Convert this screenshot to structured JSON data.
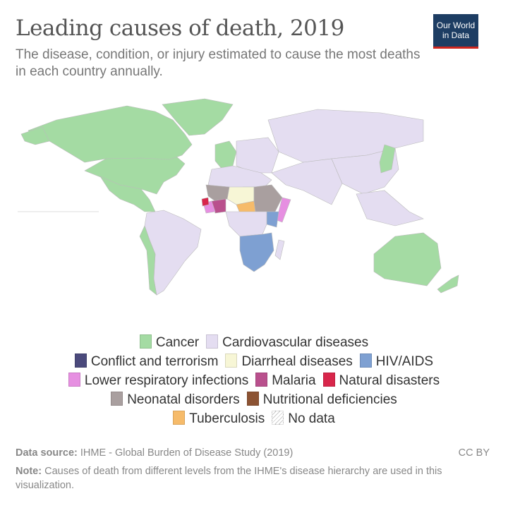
{
  "header": {
    "title": "Leading causes of death, 2019",
    "subtitle": "The disease, condition, or injury estimated to cause the most deaths in each country annually.",
    "logo_line1": "Our World",
    "logo_line2": "in Data"
  },
  "chart_data": {
    "type": "map",
    "title": "Leading causes of death, 2019",
    "legend": [
      {
        "label": "Cancer",
        "color": "#a4dba3"
      },
      {
        "label": "Cardiovascular diseases",
        "color": "#e4ddf1"
      },
      {
        "label": "Conflict and terrorism",
        "color": "#4b4a7c"
      },
      {
        "label": "Diarrheal diseases",
        "color": "#f7f6d6"
      },
      {
        "label": "HIV/AIDS",
        "color": "#7ea0d2"
      },
      {
        "label": "Lower respiratory infections",
        "color": "#e68fe1"
      },
      {
        "label": "Malaria",
        "color": "#b9508d"
      },
      {
        "label": "Natural disasters",
        "color": "#d8264b"
      },
      {
        "label": "Neonatal disorders",
        "color": "#a99f9f"
      },
      {
        "label": "Nutritional deficiencies",
        "color": "#8c5333"
      },
      {
        "label": "Tuberculosis",
        "color": "#f6bb6a"
      },
      {
        "label": "No data",
        "color": "hatch"
      }
    ],
    "regions": [
      {
        "region": "Canada",
        "cause": "Cancer"
      },
      {
        "region": "Greenland",
        "cause": "Cancer"
      },
      {
        "region": "United States",
        "cause": "Cardiovascular diseases"
      },
      {
        "region": "Central America",
        "cause": "Cardiovascular diseases"
      },
      {
        "region": "South America",
        "cause": "Cardiovascular diseases"
      },
      {
        "region": "Peru / Chile",
        "cause": "Cancer"
      },
      {
        "region": "Western Europe",
        "cause": "Cancer"
      },
      {
        "region": "Eastern Europe",
        "cause": "Cardiovascular diseases"
      },
      {
        "region": "Russia & Central Asia",
        "cause": "Cardiovascular diseases"
      },
      {
        "region": "Middle East & South Asia",
        "cause": "Cardiovascular diseases"
      },
      {
        "region": "China & East Asia",
        "cause": "Cardiovascular diseases"
      },
      {
        "region": "Japan / Korea",
        "cause": "Cancer"
      },
      {
        "region": "North Africa",
        "cause": "Cardiovascular diseases"
      },
      {
        "region": "Sahel (Niger/Chad)",
        "cause": "Diarrheal diseases"
      },
      {
        "region": "West Africa",
        "cause": "Neonatal disorders"
      },
      {
        "region": "Coastal West Africa",
        "cause": "Malaria"
      },
      {
        "region": "Sierra Leone / Liberia",
        "cause": "Lower respiratory infections"
      },
      {
        "region": "Guinea",
        "cause": "Natural disasters"
      },
      {
        "region": "Central African Republic",
        "cause": "Tuberculosis"
      },
      {
        "region": "Ethiopia / Sudan",
        "cause": "Neonatal disorders"
      },
      {
        "region": "Somalia",
        "cause": "Lower respiratory infections"
      },
      {
        "region": "Kenya",
        "cause": "HIV/AIDS"
      },
      {
        "region": "Central Africa",
        "cause": "Cardiovascular diseases"
      },
      {
        "region": "Southern Africa",
        "cause": "HIV/AIDS"
      },
      {
        "region": "Madagascar",
        "cause": "Cardiovascular diseases"
      },
      {
        "region": "Southeast Asia",
        "cause": "Cardiovascular diseases"
      },
      {
        "region": "Australia",
        "cause": "Cancer"
      },
      {
        "region": "New Zealand",
        "cause": "Cancer"
      }
    ]
  },
  "footer": {
    "source_label": "Data source:",
    "source_text": " IHME - Global Burden of Disease Study (2019)",
    "license": "CC BY",
    "note_label": "Note:",
    "note_text": " Causes of death from different levels from the IHME's disease hierarchy are used in this visualization."
  }
}
